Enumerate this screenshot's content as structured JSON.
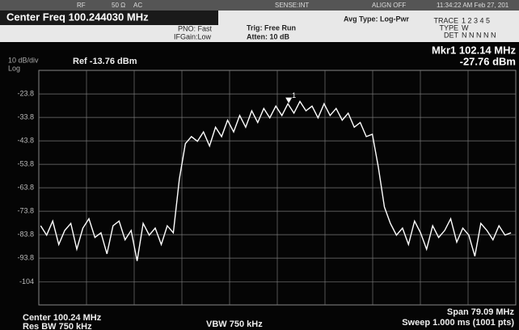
{
  "header": {
    "rf": "RF",
    "impedance": "50 Ω",
    "coupling": "AC",
    "sense": "SENSE:INT",
    "align": "ALIGN OFF",
    "time": "11:34:22 AM Feb 27, 201",
    "center_freq": "Center Freq 100.244030 MHz",
    "pno": "PNO: Fast",
    "ifgain": "IFGain:Low",
    "trig": "Trig: Free Run",
    "atten": "Atten: 10 dB",
    "avg_type": "Avg Type: Log-Pwr",
    "trace": "TRACE",
    "trace_nums": "1 2 3 4 5",
    "type": "TYPE",
    "type_val": "W",
    "det": "DET",
    "det_val": "N N N N N"
  },
  "chart_data": {
    "type": "line",
    "scale": "10 dB/div",
    "scale_mode": "Log",
    "ref": "Ref -13.76 dBm",
    "marker_readout": "Mkr1 102.14 MHz",
    "marker_level": "-27.76 dBm",
    "marker": {
      "label": "1",
      "x": 102.14,
      "y": -27.76
    },
    "center": "Center 100.24 MHz",
    "res_bw": "Res BW 750 kHz",
    "vbw": "VBW 750 kHz",
    "span": "Span 79.09 MHz",
    "sweep": "Sweep 1.000 ms (1001 pts)",
    "xlim": [
      60.695,
      139.785
    ],
    "ylim": [
      -113.76,
      -13.76
    ],
    "yticks": [
      -23.8,
      -33.8,
      -43.8,
      -53.8,
      -63.8,
      -73.8,
      -83.8,
      -93.8,
      -104
    ],
    "grid": true,
    "x": [
      61,
      62,
      63,
      64,
      65,
      66,
      67,
      68,
      69,
      70,
      71,
      72,
      73,
      74,
      75,
      76,
      77,
      78,
      79,
      80,
      81,
      82,
      83,
      84,
      85,
      86,
      87,
      88,
      89,
      90,
      91,
      92,
      93,
      94,
      95,
      96,
      97,
      98,
      99,
      100,
      101,
      102,
      103,
      104,
      105,
      106,
      107,
      108,
      109,
      110,
      111,
      112,
      113,
      114,
      115,
      116,
      117,
      118,
      119,
      120,
      121,
      122,
      123,
      124,
      125,
      126,
      127,
      128,
      129,
      130,
      131,
      132,
      133,
      134,
      135,
      136,
      137,
      138,
      139
    ],
    "series": [
      {
        "color": "#ffffff",
        "values": [
          -80,
          -84,
          -78,
          -88,
          -82,
          -79,
          -90,
          -81,
          -77,
          -85,
          -83,
          -92,
          -80,
          -78,
          -86,
          -82,
          -95,
          -79,
          -84,
          -81,
          -88,
          -80,
          -83,
          -60,
          -45,
          -42,
          -44,
          -40,
          -46,
          -38,
          -42,
          -35,
          -40,
          -33,
          -38,
          -31,
          -36,
          -30,
          -34,
          -29,
          -33,
          -28,
          -32,
          -27,
          -31,
          -29,
          -34,
          -28,
          -33,
          -30,
          -35,
          -32,
          -38,
          -36,
          -42,
          -41,
          -55,
          -72,
          -79,
          -84,
          -81,
          -88,
          -78,
          -83,
          -90,
          -80,
          -85,
          -82,
          -77,
          -87,
          -81,
          -84,
          -93,
          -79,
          -82,
          -86,
          -80,
          -84,
          -83
        ]
      }
    ]
  }
}
